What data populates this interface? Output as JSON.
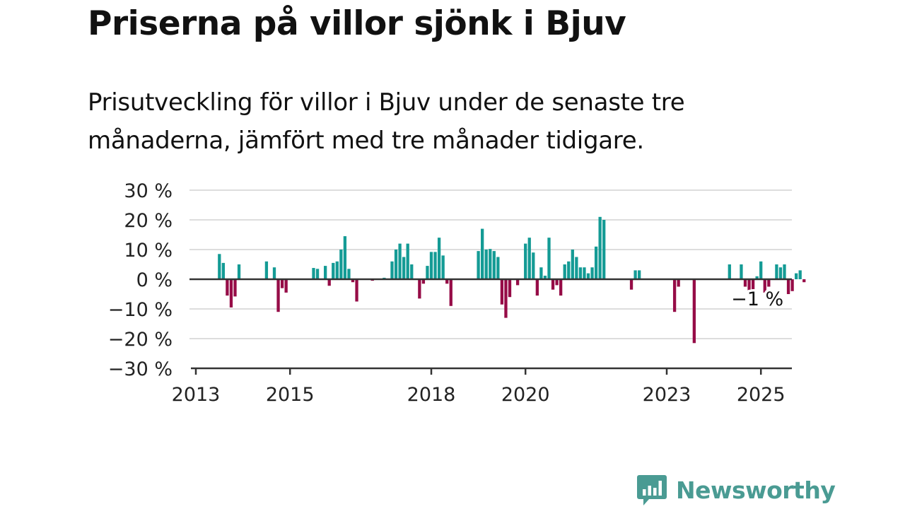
{
  "title": "Priserna på villor sjönk i Bjuv",
  "subtitle": "Prisutveckling för villor i Bjuv under de senaste tre månaderna, jämfört med tre månader tidigare.",
  "brand": {
    "name": "Newsworthy"
  },
  "colors": {
    "positive": "#149b95",
    "negative": "#960c47",
    "brand": "#4a9b93",
    "grid": "#dddddd",
    "axis": "#333333",
    "text": "#222222"
  },
  "chart_data": {
    "type": "bar",
    "x_unit": "months since 2013-01",
    "ylim": [
      -30,
      30
    ],
    "y_ticks": [
      30,
      20,
      10,
      0,
      -10,
      -20,
      -30
    ],
    "y_tick_labels": [
      "30 %",
      "20 %",
      "10 %",
      "0 %",
      "−10 %",
      "−20 %",
      "−30 %"
    ],
    "x_ticks": [
      {
        "year": 2013,
        "label": "2013"
      },
      {
        "year": 2015,
        "label": "2015"
      },
      {
        "year": 2018,
        "label": "2018"
      },
      {
        "year": 2020,
        "label": "2020"
      },
      {
        "year": 2023,
        "label": "2023"
      },
      {
        "year": 2025,
        "label": "2025"
      }
    ],
    "grid": true,
    "annotation": {
      "label": "−1 %",
      "month": 144
    },
    "values": [
      null,
      null,
      null,
      null,
      null,
      null,
      8.5,
      5.5,
      -5.5,
      -9.5,
      -5.8,
      5,
      null,
      null,
      null,
      null,
      null,
      null,
      6,
      null,
      4,
      -11,
      -3,
      -4.5,
      null,
      null,
      null,
      null,
      null,
      null,
      3.8,
      3.5,
      null,
      4.5,
      -2.2,
      5.5,
      6,
      10,
      14.5,
      3.5,
      -1,
      -7.5,
      null,
      null,
      null,
      -0.5,
      null,
      null,
      0.5,
      null,
      6,
      10,
      12,
      7.5,
      12,
      5,
      null,
      -6.5,
      -1.5,
      4.5,
      9.2,
      9.2,
      14,
      8,
      -1.5,
      -9,
      null,
      null,
      null,
      null,
      null,
      null,
      9.5,
      17,
      10,
      10.2,
      9.5,
      7.5,
      -8.5,
      -13,
      -6,
      null,
      -2,
      null,
      12,
      14,
      9,
      -5.5,
      4,
      1.2,
      14,
      -3.5,
      -2,
      -5.5,
      5,
      6,
      10,
      7.5,
      4,
      4,
      2,
      4,
      11,
      21,
      20,
      null,
      null,
      null,
      null,
      null,
      null,
      -3.5,
      3,
      3,
      null,
      null,
      null,
      null,
      null,
      null,
      null,
      null,
      -11,
      -2.5,
      null,
      null,
      null,
      -21.5,
      null,
      null,
      null,
      null,
      null,
      null,
      null,
      null,
      5,
      null,
      null,
      5,
      -2.5,
      -5.5,
      -4,
      1,
      6,
      -4.5,
      -2.5,
      null,
      5,
      4,
      5,
      -5,
      -4,
      2,
      3,
      -1
    ]
  }
}
